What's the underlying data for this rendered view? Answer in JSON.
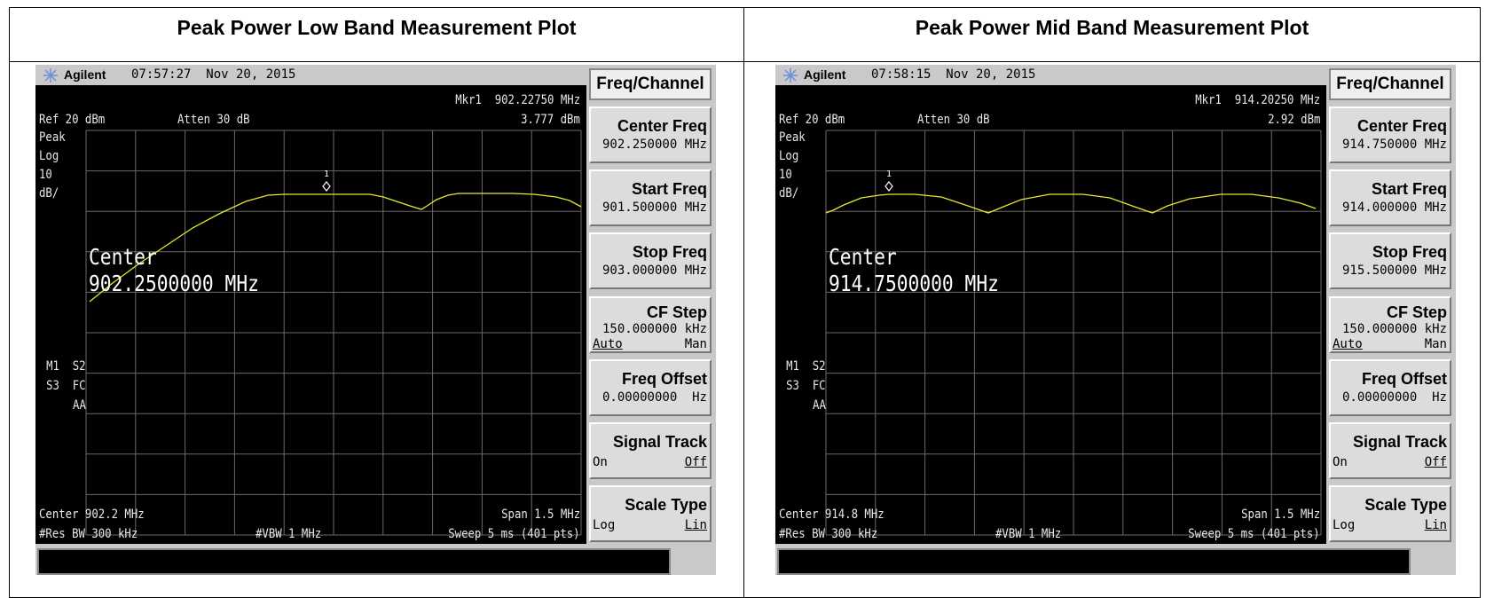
{
  "panels": [
    {
      "title": "Peak Power Low Band Measurement Plot",
      "brand": "Agilent",
      "time": "07:57:27  Nov 20, 2015",
      "marker": "Mkr1  902.22750 MHz",
      "marker_level": "3.777 dBm",
      "ref": "Ref 20 dBm",
      "atten": "Atten 30 dB",
      "scale": [
        "Peak",
        "Log",
        "10",
        "dB/"
      ],
      "marker_num": "1",
      "center_label": "Center",
      "center_value": "902.2500000 MHz",
      "status": [
        "M1  S2",
        "S3  FC",
        "AA"
      ],
      "footer": {
        "center": "Center 902.2 MHz",
        "span": "Span 1.5 MHz",
        "rbw": "#Res BW 300 kHz",
        "vbw": "#VBW 1 MHz",
        "sweep": "Sweep 5 ms (401 pts)"
      },
      "menu": {
        "title": "Freq/Channel",
        "items": [
          {
            "label": "Center Freq",
            "value": "902.250000 MHz"
          },
          {
            "label": "Start Freq",
            "value": "901.500000 MHz"
          },
          {
            "label": "Stop Freq",
            "value": "903.000000 MHz"
          },
          {
            "label": "CF Step",
            "value": "150.000000 kHz",
            "left": "Auto",
            "right": "Man"
          },
          {
            "label": "Freq Offset",
            "value": "0.00000000  Hz"
          },
          {
            "label": "Signal Track",
            "left": "On",
            "right": "Off"
          },
          {
            "label": "Scale Type",
            "left": "Log",
            "right": "Lin"
          }
        ]
      }
    },
    {
      "title": "Peak Power Mid Band Measurement Plot",
      "brand": "Agilent",
      "time": "07:58:15  Nov 20, 2015",
      "marker": "Mkr1  914.20250 MHz",
      "marker_level": "2.92 dBm",
      "ref": "Ref 20 dBm",
      "atten": "Atten 30 dB",
      "scale": [
        "Peak",
        "Log",
        "10",
        "dB/"
      ],
      "marker_num": "1",
      "center_label": "Center",
      "center_value": "914.7500000 MHz",
      "status": [
        "M1  S2",
        "S3  FC",
        "AA"
      ],
      "footer": {
        "center": "Center 914.8 MHz",
        "span": "Span 1.5 MHz",
        "rbw": "#Res BW 300 kHz",
        "vbw": "#VBW 1 MHz",
        "sweep": "Sweep 5 ms (401 pts)"
      },
      "menu": {
        "title": "Freq/Channel",
        "items": [
          {
            "label": "Center Freq",
            "value": "914.750000 MHz"
          },
          {
            "label": "Start Freq",
            "value": "914.000000 MHz"
          },
          {
            "label": "Stop Freq",
            "value": "915.500000 MHz"
          },
          {
            "label": "CF Step",
            "value": "150.000000 kHz",
            "left": "Auto",
            "right": "Man"
          },
          {
            "label": "Freq Offset",
            "value": "0.00000000  Hz"
          },
          {
            "label": "Signal Track",
            "left": "On",
            "right": "Off"
          },
          {
            "label": "Scale Type",
            "left": "Log",
            "right": "Lin"
          }
        ]
      }
    }
  ]
}
